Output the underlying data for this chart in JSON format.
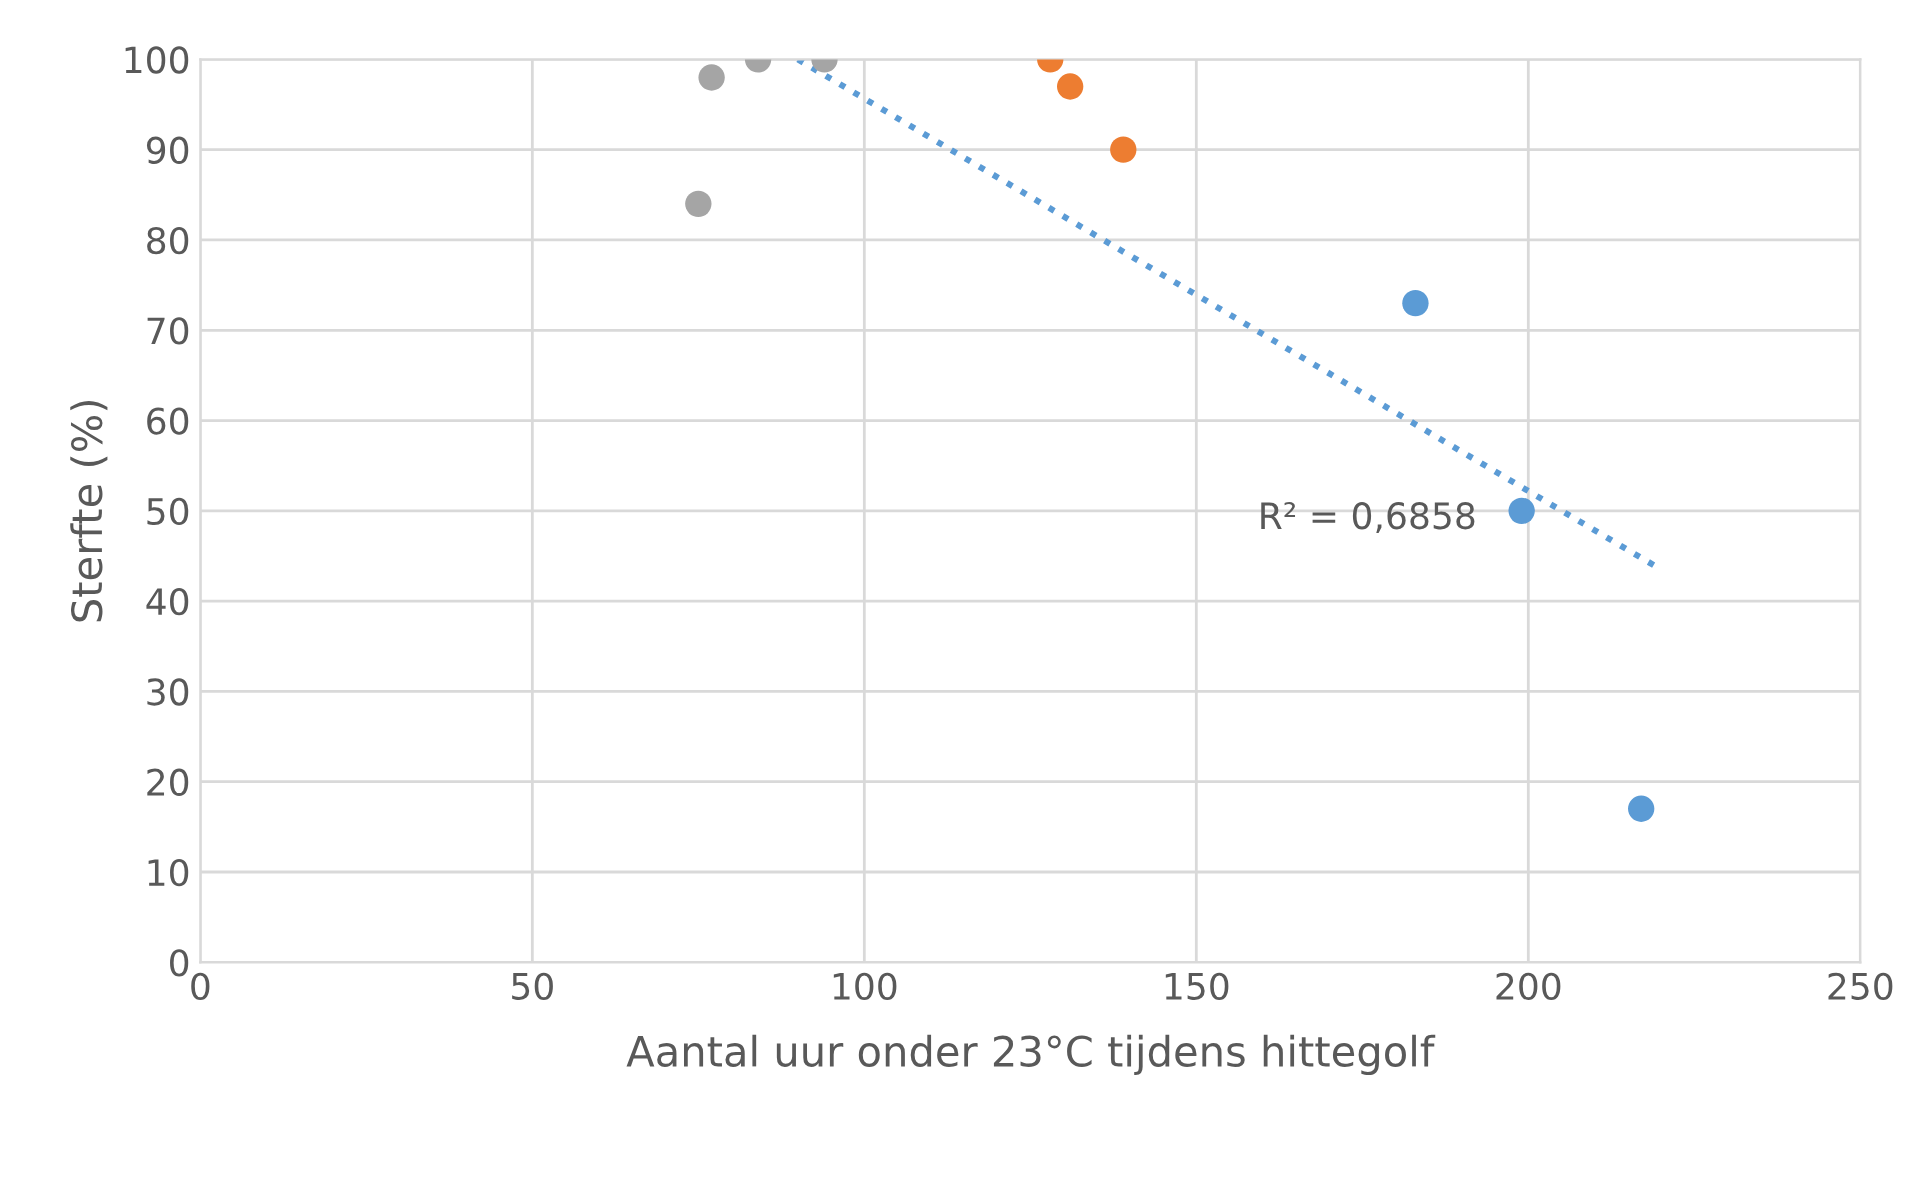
{
  "chart_data": {
    "type": "scatter",
    "xlabel": "Aantal uur onder 23°C tijdens hittegolf",
    "ylabel": "Sterfte (%)",
    "xlim": [
      0,
      250
    ],
    "xticks": [
      0,
      50,
      100,
      150,
      200,
      250
    ],
    "ylim": [
      0,
      100
    ],
    "yticks": [
      0,
      10,
      20,
      30,
      40,
      50,
      60,
      70,
      80,
      90,
      100
    ],
    "grid": true,
    "legend": false,
    "marker": "circle",
    "series": [
      {
        "color": "#a5a5a5",
        "x": [
          75,
          77,
          84,
          94
        ],
        "values": [
          84,
          98,
          100,
          100
        ]
      },
      {
        "color": "#ed7d31",
        "x": [
          128,
          131,
          139
        ],
        "values": [
          100,
          97,
          90
        ]
      },
      {
        "color": "#5b9bd5",
        "x": [
          199,
          183,
          217
        ],
        "values": [
          50,
          73,
          17
        ]
      },
      {
        "type": "line",
        "color": "#5b9bd5",
        "line_style": "dotted",
        "marker": "none",
        "x": [
          90,
          220
        ],
        "values": [
          100,
          43.5
        ]
      }
    ],
    "annotations": [
      "R² = 0,6858"
    ]
  }
}
